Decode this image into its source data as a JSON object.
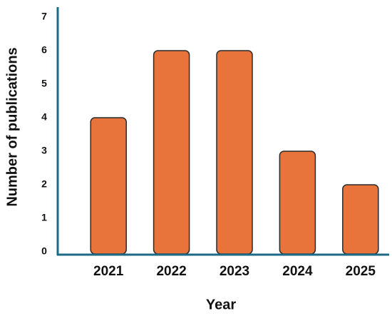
{
  "chart_data": {
    "type": "bar",
    "x_label": "Year",
    "y_label": "Number of publications",
    "categories": [
      "2021",
      "2022",
      "2023",
      "2024",
      "2025"
    ],
    "values": [
      4,
      6,
      6,
      3,
      2
    ],
    "color": "#e8743b",
    "ylim": [
      0,
      7
    ],
    "yticks": [
      0,
      1,
      2,
      3,
      4,
      5,
      6,
      7
    ],
    "grid": false
  }
}
